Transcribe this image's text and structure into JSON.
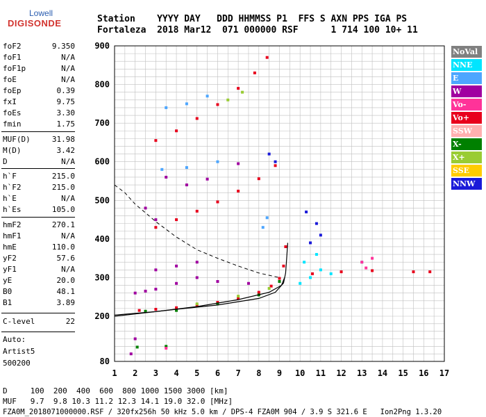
{
  "logo": {
    "line1": "Lowell",
    "line2": "DIGISONDE"
  },
  "header": {
    "row1": "Station    YYYY DAY   DDD HHMMSS P1  FFS S AXN PPS IGA PS",
    "row2": "Fortaleza  2018 Mar12  071 000000 RSF      1 714 100 10+ 11"
  },
  "params": [
    {
      "name": "foF2",
      "value": "9.350"
    },
    {
      "name": "foF1",
      "value": "N/A"
    },
    {
      "name": "foF1p",
      "value": "N/A"
    },
    {
      "name": "foE",
      "value": "N/A"
    },
    {
      "name": "foEp",
      "value": "0.39"
    },
    {
      "name": "fxI",
      "value": "9.75"
    },
    {
      "name": "foEs",
      "value": "3.30"
    },
    {
      "name": "fmin",
      "value": "1.75"
    },
    {
      "name": "MUF(D)",
      "value": "31.98"
    },
    {
      "name": "M(D)",
      "value": "3.42"
    },
    {
      "name": "D",
      "value": "N/A"
    },
    {
      "name": "h`F",
      "value": "215.0"
    },
    {
      "name": "h`F2",
      "value": "215.0"
    },
    {
      "name": "h`E",
      "value": "N/A"
    },
    {
      "name": "h`Es",
      "value": "105.0"
    },
    {
      "name": "hmF2",
      "value": "270.1"
    },
    {
      "name": "hmF1",
      "value": "N/A"
    },
    {
      "name": "hmE",
      "value": "110.0"
    },
    {
      "name": "yF2",
      "value": "57.6"
    },
    {
      "name": "yF1",
      "value": "N/A"
    },
    {
      "name": "yE",
      "value": "20.0"
    },
    {
      "name": "B0",
      "value": "48.1"
    },
    {
      "name": "B1",
      "value": "3.89"
    },
    {
      "name": "C-level",
      "value": "22"
    }
  ],
  "meta": {
    "auto": "Auto:",
    "artist": "Artist5",
    "version": "500200"
  },
  "legend": [
    {
      "label": "NoVal",
      "color": "#808080"
    },
    {
      "label": "NNE",
      "color": "#00e5ff"
    },
    {
      "label": "E",
      "color": "#4da6ff"
    },
    {
      "label": "W",
      "color": "#a000a0"
    },
    {
      "label": "Vo-",
      "color": "#ff3399"
    },
    {
      "label": "Vo+",
      "color": "#e8001c"
    },
    {
      "label": "SSW",
      "color": "#ffb0b0"
    },
    {
      "label": "X-",
      "color": "#008000"
    },
    {
      "label": "X+",
      "color": "#99cc33"
    },
    {
      "label": "SSE",
      "color": "#ffcc00"
    },
    {
      "label": "NNW",
      "color": "#1a1ad9"
    }
  ],
  "footer": {
    "d_row": "D     100  200  400  600  800 1000 1500 3000 [km]",
    "muf_row": "MUF   9.7  9.8 10.3 11.2 12.3 14.1 19.0 32.0 [MHz]",
    "info": "FZA0M_2018071000000.RSF / 320fx256h 50 kHz 5.0 km / DPS-4 FZA0M 904 / 3.9 S 321.6 E   Ion2Png 1.3.20"
  },
  "chart_data": {
    "type": "scatter",
    "xlim": [
      1,
      17
    ],
    "ylim": [
      80,
      900
    ],
    "x_ticks": [
      1,
      2,
      3,
      4,
      5,
      6,
      7,
      8,
      9,
      10,
      11,
      12,
      13,
      14,
      15,
      16,
      17
    ],
    "y_ticks": [
      80,
      200,
      300,
      400,
      500,
      600,
      700,
      800,
      900
    ],
    "grid": true,
    "series": [
      {
        "name": "Vo+",
        "color": "#e8001c",
        "points": [
          [
            2.2,
            215
          ],
          [
            3,
            218
          ],
          [
            4,
            222
          ],
          [
            5,
            228
          ],
          [
            6,
            236
          ],
          [
            7,
            246
          ],
          [
            8,
            262
          ],
          [
            8.6,
            278
          ],
          [
            9,
            298
          ],
          [
            9.2,
            330
          ],
          [
            9.3,
            380
          ],
          [
            3,
            430
          ],
          [
            4,
            450
          ],
          [
            5,
            472
          ],
          [
            6,
            496
          ],
          [
            7,
            524
          ],
          [
            8,
            556
          ],
          [
            8.8,
            590
          ],
          [
            3,
            655
          ],
          [
            4,
            680
          ],
          [
            5,
            712
          ],
          [
            6,
            748
          ],
          [
            7,
            790
          ],
          [
            7.8,
            830
          ],
          [
            8.4,
            870
          ],
          [
            10.6,
            310
          ],
          [
            12,
            315
          ],
          [
            13.5,
            318
          ],
          [
            15.5,
            315
          ],
          [
            16.3,
            315
          ]
        ]
      },
      {
        "name": "W",
        "color": "#a000a0",
        "points": [
          [
            2,
            260
          ],
          [
            2.5,
            265
          ],
          [
            3,
            270
          ],
          [
            4,
            285
          ],
          [
            5,
            300
          ],
          [
            6,
            290
          ],
          [
            7.5,
            285
          ],
          [
            3,
            320
          ],
          [
            4,
            330
          ],
          [
            5,
            340
          ],
          [
            3.5,
            560
          ],
          [
            4.5,
            540
          ],
          [
            5.5,
            555
          ],
          [
            2.5,
            480
          ],
          [
            3,
            450
          ],
          [
            7,
            595
          ],
          [
            1.8,
            100
          ],
          [
            2,
            140
          ]
        ]
      },
      {
        "name": "X-",
        "color": "#008000",
        "points": [
          [
            2.5,
            213
          ],
          [
            4,
            215
          ],
          [
            6,
            232
          ],
          [
            8,
            255
          ],
          [
            9,
            290
          ],
          [
            3.5,
            120
          ],
          [
            2.1,
            118
          ]
        ]
      },
      {
        "name": "X+",
        "color": "#99cc33",
        "points": [
          [
            5,
            232
          ],
          [
            7,
            252
          ],
          [
            8.5,
            272
          ],
          [
            6.5,
            760
          ],
          [
            7.2,
            780
          ]
        ]
      },
      {
        "name": "NNE",
        "color": "#00e5ff",
        "points": [
          [
            10,
            285
          ],
          [
            10.5,
            300
          ],
          [
            11,
            320
          ],
          [
            11.5,
            310
          ],
          [
            10.2,
            340
          ],
          [
            10.8,
            360
          ]
        ]
      },
      {
        "name": "NNW",
        "color": "#1a1ad9",
        "points": [
          [
            10.5,
            390
          ],
          [
            11,
            410
          ],
          [
            10.8,
            440
          ],
          [
            10.3,
            470
          ],
          [
            8.5,
            620
          ],
          [
            8.8,
            600
          ]
        ]
      },
      {
        "name": "E",
        "color": "#4da6ff",
        "points": [
          [
            3.5,
            740
          ],
          [
            4.5,
            750
          ],
          [
            5.5,
            770
          ],
          [
            3.3,
            580
          ],
          [
            4.5,
            585
          ],
          [
            6,
            600
          ],
          [
            8.2,
            430
          ],
          [
            8.4,
            455
          ],
          [
            13,
            340
          ]
        ]
      },
      {
        "name": "Vo-",
        "color": "#ff3399",
        "points": [
          [
            13,
            340
          ],
          [
            13.5,
            350
          ],
          [
            13.2,
            325
          ],
          [
            3.5,
            115
          ]
        ]
      }
    ],
    "profile_curve": [
      [
        1,
        200
      ],
      [
        4,
        218
      ],
      [
        6,
        229
      ],
      [
        8,
        246
      ],
      [
        8.8,
        262
      ],
      [
        9.2,
        286
      ],
      [
        9.3,
        312
      ],
      [
        9.35,
        350
      ],
      [
        9.4,
        390
      ]
    ],
    "profile_curve_2": [
      [
        1,
        203
      ],
      [
        3,
        212
      ],
      [
        5,
        225
      ],
      [
        7,
        243
      ],
      [
        8.5,
        262
      ],
      [
        9.1,
        280
      ],
      [
        9.25,
        300
      ]
    ],
    "dashed_curve": [
      [
        1,
        540
      ],
      [
        1.5,
        520
      ],
      [
        2,
        490
      ],
      [
        2.5,
        468
      ],
      [
        3,
        445
      ],
      [
        4,
        405
      ],
      [
        5,
        372
      ],
      [
        6,
        350
      ],
      [
        7,
        330
      ],
      [
        8,
        312
      ],
      [
        9,
        300
      ]
    ]
  }
}
